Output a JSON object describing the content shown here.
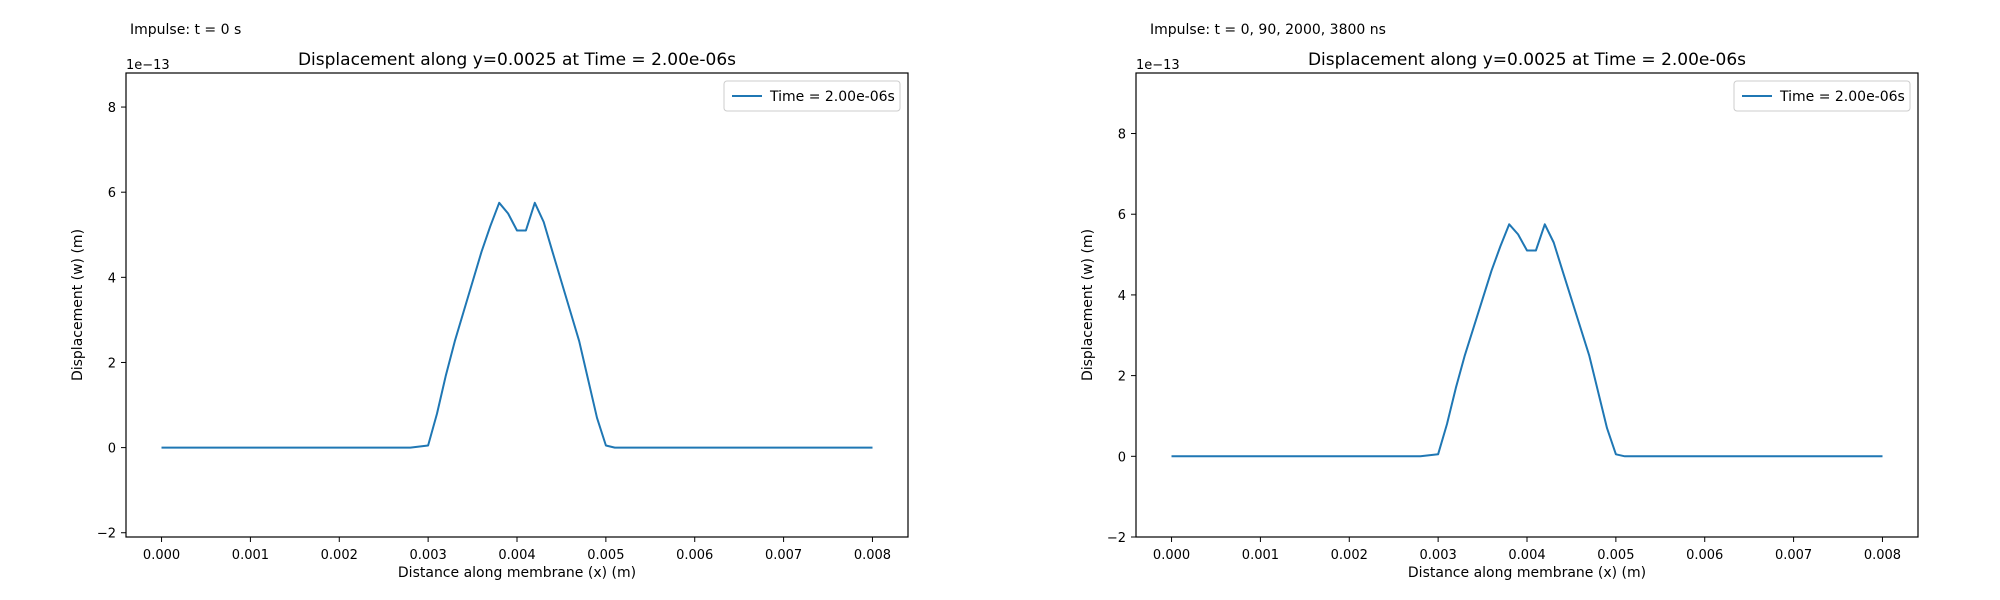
{
  "colors": {
    "series": "#1f77b4",
    "axes": "#000000",
    "legend_border": "#cccccc"
  },
  "panels": [
    {
      "caption": "Impulse: t = 0 s"
    },
    {
      "caption": "Impulse: t = 0, 90, 2000, 3800 ns"
    }
  ],
  "chart_data": [
    {
      "type": "line",
      "title": "Displacement along y=0.0025 at Time = 2.00e-06s",
      "xlabel": "Distance along membrane (x) (m)",
      "ylabel": "Displacement (w) (m)",
      "y_multiplier_label": "1e−13",
      "xlim": [
        -0.0004,
        0.0084
      ],
      "ylim": [
        -2.1,
        8.8
      ],
      "x_ticks": [
        0,
        0.001,
        0.002,
        0.003,
        0.004,
        0.005,
        0.006,
        0.007,
        0.008
      ],
      "x_tick_labels": [
        "0.000",
        "0.001",
        "0.002",
        "0.003",
        "0.004",
        "0.005",
        "0.006",
        "0.007",
        "0.008"
      ],
      "y_ticks": [
        -2,
        0,
        2,
        4,
        6,
        8
      ],
      "y_tick_labels": [
        "−2",
        "0",
        "2",
        "4",
        "6",
        "8"
      ],
      "grid": false,
      "legend_position": "top-right",
      "series": [
        {
          "name": "Time = 2.00e-06s",
          "x": [
            0,
            0.0005,
            0.001,
            0.0015,
            0.002,
            0.0025,
            0.0028,
            0.003,
            0.0031,
            0.0032,
            0.0033,
            0.0034,
            0.0035,
            0.0036,
            0.0037,
            0.0038,
            0.0039,
            0.004,
            0.0041,
            0.0042,
            0.0043,
            0.0044,
            0.0045,
            0.0046,
            0.0047,
            0.0048,
            0.0049,
            0.005,
            0.0051,
            0.0052,
            0.006,
            0.007,
            0.008
          ],
          "y": [
            0,
            0,
            0,
            0,
            0,
            0,
            0,
            0.05,
            0.8,
            1.7,
            2.5,
            3.2,
            3.9,
            4.6,
            5.2,
            5.75,
            5.5,
            5.1,
            5.1,
            5.75,
            5.3,
            4.6,
            3.9,
            3.2,
            2.5,
            1.6,
            0.7,
            0.05,
            0,
            0,
            0,
            0,
            0
          ]
        }
      ]
    },
    {
      "type": "line",
      "title": "Displacement along y=0.0025 at Time = 2.00e-06s",
      "xlabel": "Distance along membrane (x) (m)",
      "ylabel": "Displacement (w) (m)",
      "y_multiplier_label": "1e−13",
      "xlim": [
        -0.0004,
        0.0084
      ],
      "ylim": [
        -2.0,
        9.5
      ],
      "x_ticks": [
        0,
        0.001,
        0.002,
        0.003,
        0.004,
        0.005,
        0.006,
        0.007,
        0.008
      ],
      "x_tick_labels": [
        "0.000",
        "0.001",
        "0.002",
        "0.003",
        "0.004",
        "0.005",
        "0.006",
        "0.007",
        "0.008"
      ],
      "y_ticks": [
        -2,
        0,
        2,
        4,
        6,
        8
      ],
      "y_tick_labels": [
        "−2",
        "0",
        "2",
        "4",
        "6",
        "8"
      ],
      "grid": false,
      "legend_position": "top-right",
      "series": [
        {
          "name": "Time = 2.00e-06s",
          "x": [
            0,
            0.0005,
            0.001,
            0.0015,
            0.002,
            0.0025,
            0.0028,
            0.003,
            0.0031,
            0.0032,
            0.0033,
            0.0034,
            0.0035,
            0.0036,
            0.0037,
            0.0038,
            0.0039,
            0.004,
            0.0041,
            0.0042,
            0.0043,
            0.0044,
            0.0045,
            0.0046,
            0.0047,
            0.0048,
            0.0049,
            0.005,
            0.0051,
            0.0052,
            0.006,
            0.007,
            0.008
          ],
          "y": [
            0,
            0,
            0,
            0,
            0,
            0,
            0,
            0.05,
            0.8,
            1.7,
            2.5,
            3.2,
            3.9,
            4.6,
            5.2,
            5.75,
            5.5,
            5.1,
            5.1,
            5.75,
            5.3,
            4.6,
            3.9,
            3.2,
            2.5,
            1.6,
            0.7,
            0.05,
            0,
            0,
            0,
            0,
            0
          ]
        }
      ]
    }
  ]
}
